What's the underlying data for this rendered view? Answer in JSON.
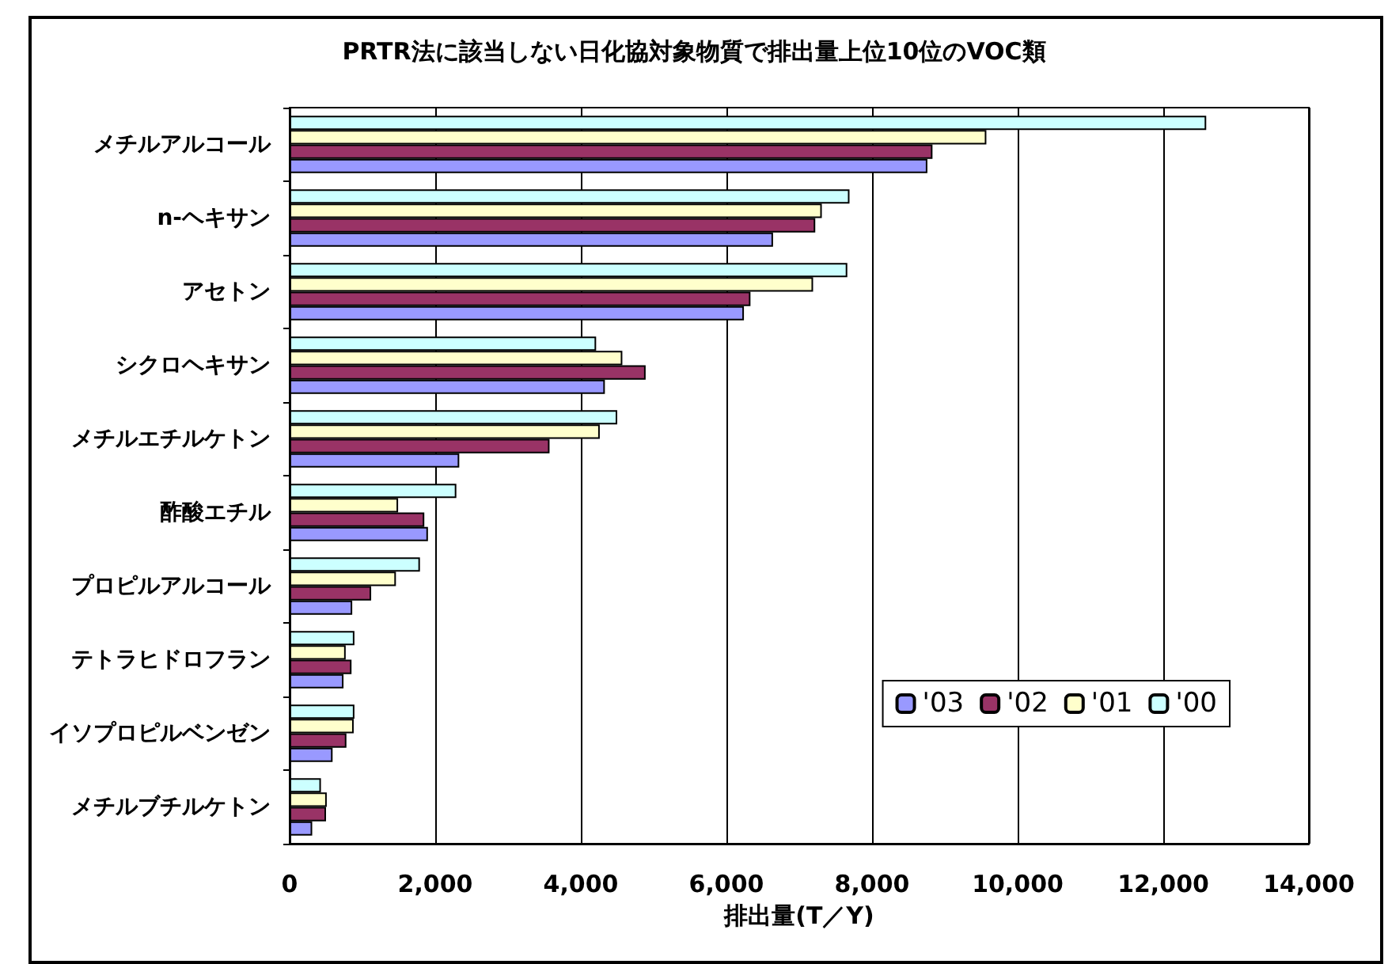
{
  "chart_data": {
    "type": "bar",
    "orientation": "horizontal",
    "title": "PRTR法に該当しない日化協対象物質で排出量上位10位のVOC類",
    "xlabel": "排出量(T／Y)",
    "categories": [
      "メチルアルコール",
      "n-ヘキサン",
      "アセトン",
      "シクロヘキサン",
      "メチルエチルケトン",
      "酢酸エチル",
      "プロピルアルコール",
      "テトラヒドロフラン",
      "イソプロピルベンゼン",
      "メチルブチルケトン"
    ],
    "series": [
      {
        "name": "'03",
        "color": "#9999ff",
        "values": [
          8760,
          6640,
          6240,
          4330,
          2330,
          1900,
          860,
          740,
          590,
          310
        ]
      },
      {
        "name": "'02",
        "color": "#993366",
        "values": [
          8830,
          7220,
          6330,
          4890,
          3570,
          1850,
          1120,
          850,
          780,
          500
        ]
      },
      {
        "name": "'01",
        "color": "#ffffcc",
        "values": [
          9570,
          7310,
          7190,
          4570,
          4260,
          1490,
          1460,
          770,
          880,
          510
        ]
      },
      {
        "name": "'00",
        "color": "#ccffff",
        "values": [
          12590,
          7690,
          7660,
          4210,
          4500,
          2290,
          1790,
          890,
          890,
          430
        ]
      }
    ],
    "xlim": [
      0,
      14000
    ],
    "xticks": [
      0,
      {
        "value": 2000,
        "label": "2,000"
      },
      {
        "value": 4000,
        "label": "4,000"
      },
      {
        "value": 6000,
        "label": "6,000"
      },
      {
        "value": 8000,
        "label": "8,000"
      },
      {
        "value": 10000,
        "label": "10,000"
      },
      {
        "value": 12000,
        "label": "12,000"
      },
      {
        "value": 14000,
        "label": "14,000"
      }
    ],
    "grid": "x",
    "legend": "bottom right"
  }
}
